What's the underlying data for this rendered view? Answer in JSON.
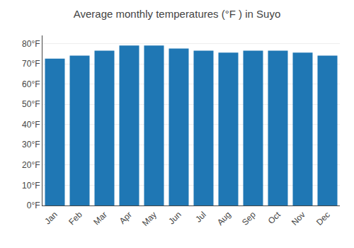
{
  "chart_data": {
    "type": "bar",
    "title": "Average monthly temperatures (°F ) in Suyo",
    "categories": [
      "Jan",
      "Feb",
      "Mar",
      "Apr",
      "May",
      "Jun",
      "Jul",
      "Aug",
      "Sep",
      "Oct",
      "Nov",
      "Dec"
    ],
    "values": [
      72.5,
      74.0,
      76.5,
      79.0,
      79.0,
      77.5,
      76.5,
      75.5,
      76.5,
      76.5,
      75.5,
      74.0
    ],
    "ylim": [
      0,
      84
    ],
    "yticks": [
      {
        "value": 0,
        "label": "0°F"
      },
      {
        "value": 10,
        "label": "10°F"
      },
      {
        "value": 20,
        "label": "20°F"
      },
      {
        "value": 30,
        "label": "30°F"
      },
      {
        "value": 40,
        "label": "40°F"
      },
      {
        "value": 50,
        "label": "50°F"
      },
      {
        "value": 60,
        "label": "60°F"
      },
      {
        "value": 70,
        "label": "70°F"
      },
      {
        "value": 80,
        "label": "80°F"
      }
    ],
    "grid": true
  }
}
